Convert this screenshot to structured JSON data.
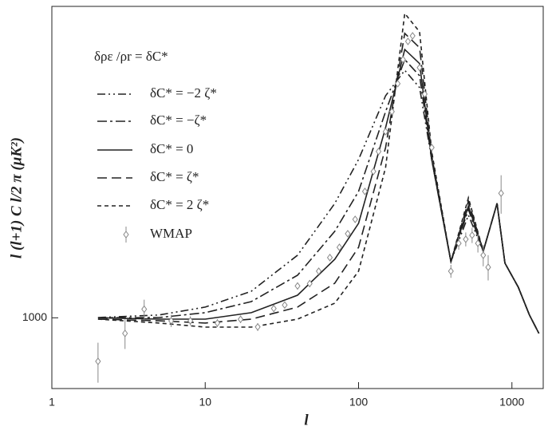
{
  "chart_data": {
    "type": "line",
    "annotation": "δρε /ρr = δC*",
    "x_label": "l",
    "y_label": "l (l+1) C l/2 π (μK²)",
    "xscale": "log",
    "yscale": "log",
    "xlim": [
      1,
      1600
    ],
    "ylim": [
      620,
      8200
    ],
    "xticks": [
      1,
      10,
      100,
      1000
    ],
    "yticks": [
      1000
    ],
    "x": [
      2,
      5,
      10,
      20,
      40,
      70,
      100,
      150,
      200,
      250,
      300,
      400,
      520,
      650,
      800,
      900,
      1100,
      1300,
      1500
    ],
    "series": [
      {
        "name": "δC* = −2 ζ*",
        "color": "#222",
        "dash": "10,4,2,4,2,4",
        "values": [
          1002,
          1019,
          1075,
          1197,
          1526,
          2166,
          2914,
          4484,
          5325,
          4736,
          2914,
          1461,
          2000,
          1568,
          2166,
          1447,
          1230,
          1019,
          900
        ]
      },
      {
        "name": "δC* = −ζ*",
        "color": "#222",
        "dash": "12,4,3,4",
        "values": [
          1000,
          1002,
          1035,
          1116,
          1333,
          1794,
          2349,
          4027,
          5723,
          5133,
          2914,
          1461,
          2080,
          1568,
          2166,
          1447,
          1230,
          1019,
          900
        ]
      },
      {
        "name": "δC* = 0",
        "color": "#222",
        "dash": "",
        "values": [
          1000,
          991,
          991,
          1035,
          1165,
          1485,
          1893,
          3615,
          6130,
          5570,
          2914,
          1461,
          2130,
          1568,
          2166,
          1447,
          1230,
          1019,
          900
        ]
      },
      {
        "name": "δC* = ζ*",
        "color": "#222",
        "dash": "12,6",
        "values": [
          991,
          980,
          965,
          991,
          1075,
          1264,
          1610,
          3160,
          6833,
          6200,
          2995,
          1461,
          2200,
          1568,
          2166,
          1447,
          1230,
          1019,
          900
        ]
      },
      {
        "name": "δC* = 2 ζ*",
        "color": "#222",
        "dash": "5,4",
        "values": [
          991,
          965,
          939,
          939,
          991,
          1104,
          1370,
          2762,
          7820,
          6906,
          3076,
          1461,
          2250,
          1568,
          2166,
          1447,
          1230,
          1019,
          900
        ]
      },
      {
        "name": "WMAP",
        "color": "#888",
        "marker": "diamond",
        "x": [
          2,
          3,
          4,
          6,
          8,
          12,
          17,
          22,
          28,
          33,
          40,
          48,
          55,
          65,
          75,
          85,
          95,
          110,
          125,
          135,
          150,
          165,
          180,
          195,
          210,
          225,
          250,
          270,
          300,
          400,
          450,
          500,
          550,
          600,
          650,
          700,
          850
        ],
        "values": [
          745,
          900,
          1060,
          980,
          980,
          965,
          990,
          940,
          1065,
          1090,
          1240,
          1260,
          1370,
          1502,
          1610,
          1765,
          1945,
          2349,
          2688,
          3076,
          3518,
          4027,
          4864,
          5723,
          6473,
          6720,
          5420,
          4534,
          3160,
          1370,
          1654,
          1700,
          1747,
          1654,
          1526,
          1407,
          2320
        ],
        "errors": [
          100,
          90,
          70,
          40,
          30,
          25,
          25,
          25,
          25,
          25,
          30,
          30,
          30,
          30,
          35,
          35,
          40,
          45,
          50,
          55,
          60,
          70,
          80,
          90,
          100,
          110,
          100,
          100,
          80,
          60,
          70,
          80,
          90,
          100,
          110,
          120,
          300
        ]
      }
    ]
  }
}
